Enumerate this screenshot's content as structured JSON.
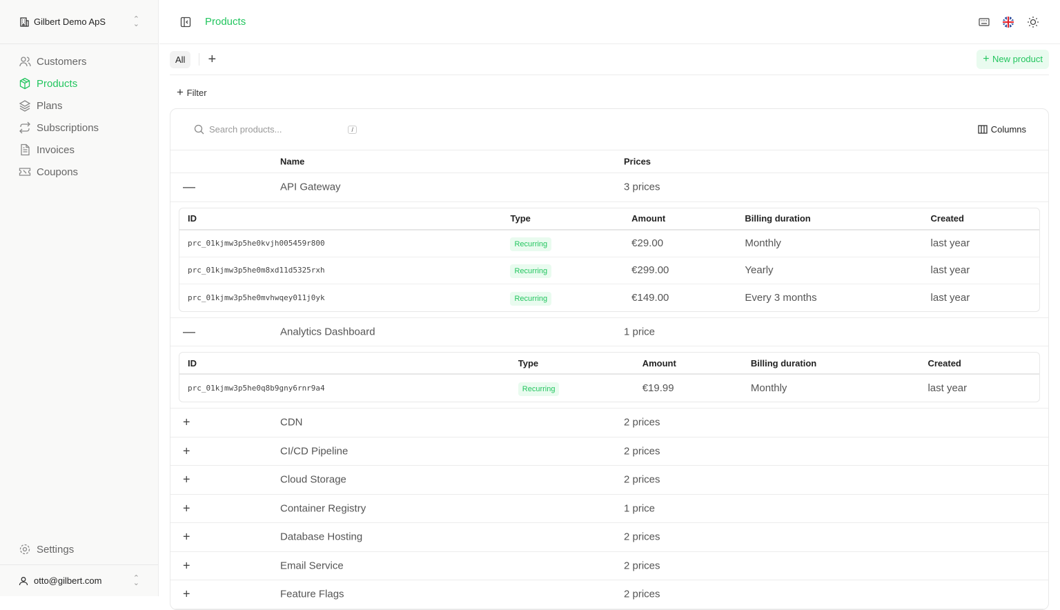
{
  "sidebar": {
    "org": "Gilbert Demo ApS",
    "items": [
      {
        "label": "Customers",
        "icon": "users-icon"
      },
      {
        "label": "Products",
        "icon": "package-icon",
        "active": true
      },
      {
        "label": "Plans",
        "icon": "layers-icon"
      },
      {
        "label": "Subscriptions",
        "icon": "repeat-icon"
      },
      {
        "label": "Invoices",
        "icon": "file-text-icon"
      },
      {
        "label": "Coupons",
        "icon": "ticket-icon"
      }
    ],
    "settings": "Settings",
    "user": "otto@gilbert.com"
  },
  "header": {
    "title": "Products"
  },
  "tabs": {
    "all": "All",
    "new_product": "New product"
  },
  "filter": "Filter",
  "search": {
    "placeholder": "Search products...",
    "shortcut": "/"
  },
  "columns_label": "Columns",
  "table": {
    "headers": {
      "name": "Name",
      "prices": "Prices"
    },
    "sub_headers": [
      "ID",
      "Type",
      "Amount",
      "Billing duration",
      "Created"
    ],
    "products": [
      {
        "name": "API Gateway",
        "prices": "3 prices",
        "expanded": true,
        "price_rows": [
          {
            "id": "prc_01kjmw3p5he0kvjh005459r800",
            "type": "Recurring",
            "amount": "€29.00",
            "billing": "Monthly",
            "created": "last year"
          },
          {
            "id": "prc_01kjmw3p5he0m8xd11d5325rxh",
            "type": "Recurring",
            "amount": "€299.00",
            "billing": "Yearly",
            "created": "last year"
          },
          {
            "id": "prc_01kjmw3p5he0mvhwqey011j0yk",
            "type": "Recurring",
            "amount": "€149.00",
            "billing": "Every 3 months",
            "created": "last year"
          }
        ]
      },
      {
        "name": "Analytics Dashboard",
        "prices": "1 price",
        "expanded": true,
        "price_rows": [
          {
            "id": "prc_01kjmw3p5he0q8b9gny6rnr9a4",
            "type": "Recurring",
            "amount": "€19.99",
            "billing": "Monthly",
            "created": "last year"
          }
        ]
      },
      {
        "name": "CDN",
        "prices": "2 prices"
      },
      {
        "name": "CI/CD Pipeline",
        "prices": "2 prices"
      },
      {
        "name": "Cloud Storage",
        "prices": "2 prices"
      },
      {
        "name": "Container Registry",
        "prices": "1 price"
      },
      {
        "name": "Database Hosting",
        "prices": "2 prices"
      },
      {
        "name": "Email Service",
        "prices": "2 prices"
      },
      {
        "name": "Feature Flags",
        "prices": "2 prices"
      }
    ]
  },
  "colors": {
    "accent": "#22c55e"
  }
}
